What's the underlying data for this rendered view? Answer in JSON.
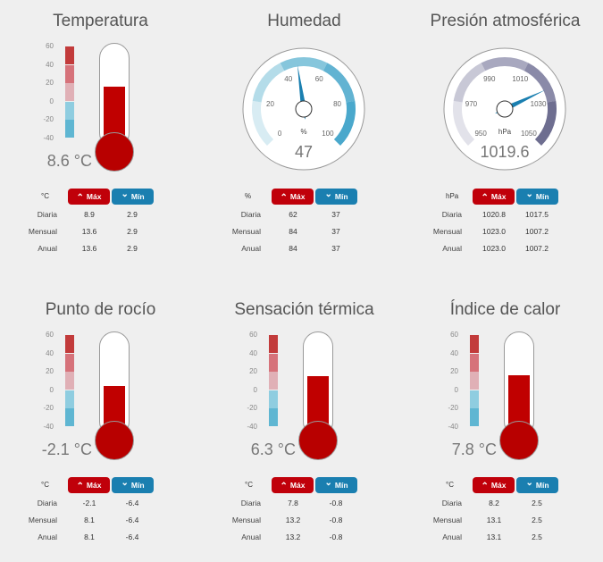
{
  "panels": [
    {
      "title": "Temperatura",
      "value": "8.6 °C",
      "unit": "°C",
      "type": "therm",
      "level": 0.51,
      "rows": [
        [
          "Diaria",
          "8.9",
          "2.9"
        ],
        [
          "Mensual",
          "13.6",
          "2.9"
        ],
        [
          "Anual",
          "13.6",
          "2.9"
        ]
      ]
    },
    {
      "title": "Humedad",
      "value": "47",
      "unit": "%",
      "type": "gauge",
      "gaugeUnit": "%",
      "level": 0.47,
      "rows": [
        [
          "Diaria",
          "62",
          "37"
        ],
        [
          "Mensual",
          "84",
          "37"
        ],
        [
          "Anual",
          "84",
          "37"
        ]
      ]
    },
    {
      "title": "Presión atmosférica",
      "value": "1019.6",
      "unit": "hPa",
      "type": "gauge",
      "gaugeUnit": "hPa",
      "level": 0.74,
      "rows": [
        [
          "Diaria",
          "1020.8",
          "1017.5"
        ],
        [
          "Mensual",
          "1023.0",
          "1007.2"
        ],
        [
          "Anual",
          "1023.0",
          "1007.2"
        ]
      ]
    },
    {
      "title": "Punto de rocío",
      "value": "-2.1 °C",
      "unit": "°C",
      "type": "therm",
      "level": 0.41,
      "rows": [
        [
          "Diaria",
          "-2.1",
          "-6.4"
        ],
        [
          "Mensual",
          "8.1",
          "-6.4"
        ],
        [
          "Anual",
          "8.1",
          "-6.4"
        ]
      ]
    },
    {
      "title": "Sensación térmica",
      "value": "6.3 °C",
      "unit": "°C",
      "type": "therm",
      "level": 0.5,
      "rows": [
        [
          "Diaria",
          "7.8",
          "-0.8"
        ],
        [
          "Mensual",
          "13.2",
          "-0.8"
        ],
        [
          "Anual",
          "13.2",
          "-0.8"
        ]
      ]
    },
    {
      "title": "Índice de calor",
      "value": "7.8 °C",
      "unit": "°C",
      "type": "therm",
      "level": 0.51,
      "rows": [
        [
          "Diaria",
          "8.2",
          "2.5"
        ],
        [
          "Mensual",
          "13.1",
          "2.5"
        ],
        [
          "Anual",
          "13.1",
          "2.5"
        ]
      ]
    }
  ],
  "labels": {
    "max": "Máx",
    "min": "Mín"
  },
  "thermScale": [
    "60",
    "40",
    "20",
    "0",
    "-20",
    "-40"
  ],
  "humidityTicks": [
    "0",
    "20",
    "40",
    "60",
    "80",
    "100"
  ],
  "pressureTicks": [
    "950",
    "970",
    "990",
    "1010",
    "1030",
    "1050"
  ],
  "colors": {
    "max": "#c0000a",
    "min": "#1a7fb0",
    "mercury": "#c00000"
  }
}
